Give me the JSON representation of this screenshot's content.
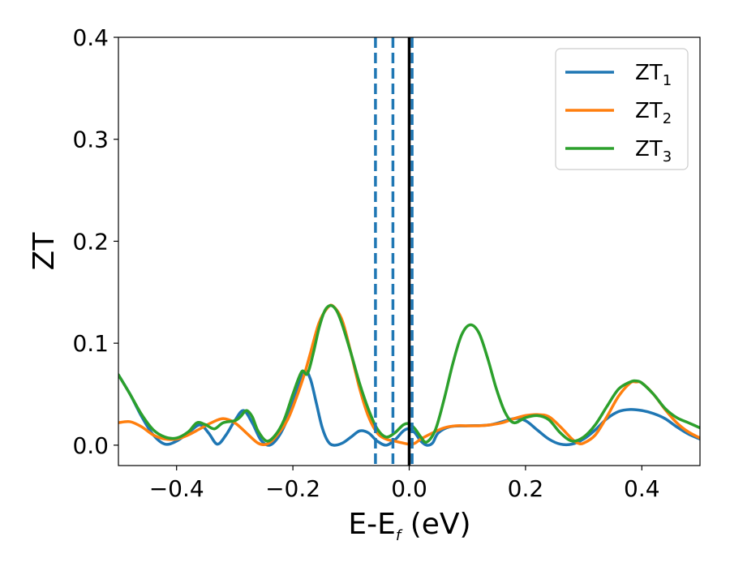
{
  "chart_data": {
    "type": "line",
    "title": "",
    "xlabel": "E-E",
    "xlabel_sub": "f",
    "xlabel_unit": " (eV)",
    "ylabel": "ZT",
    "xlim": [
      -0.5,
      0.5
    ],
    "ylim": [
      -0.02,
      0.4
    ],
    "grid": false,
    "legend_position": "top-right",
    "x_ticks": [
      -0.4,
      -0.2,
      0.0,
      0.2,
      0.4
    ],
    "x_tick_labels": [
      "−0.4",
      "−0.2",
      "0.0",
      "0.2",
      "0.4"
    ],
    "y_ticks": [
      0.0,
      0.1,
      0.2,
      0.3,
      0.4
    ],
    "y_tick_labels": [
      "0.0",
      "0.1",
      "0.2",
      "0.3",
      "0.4"
    ],
    "vertical_lines": [
      {
        "x": -0.058,
        "style": "dashed",
        "color": "#1f77b4"
      },
      {
        "x": -0.028,
        "style": "dashed",
        "color": "#1f77b4"
      },
      {
        "x": 0.005,
        "style": "dashed",
        "color": "#1f77b4"
      },
      {
        "x": 0.0,
        "style": "solid",
        "color": "#000000"
      }
    ],
    "series": [
      {
        "name": "ZT",
        "name_sub": "1",
        "color": "#1f77b4",
        "points": [
          [
            -0.5,
            0.069
          ],
          [
            -0.48,
            0.05
          ],
          [
            -0.46,
            0.028
          ],
          [
            -0.44,
            0.01
          ],
          [
            -0.42,
            0.001
          ],
          [
            -0.4,
            0.004
          ],
          [
            -0.38,
            0.012
          ],
          [
            -0.36,
            0.02
          ],
          [
            -0.345,
            0.012
          ],
          [
            -0.33,
            0.001
          ],
          [
            -0.315,
            0.01
          ],
          [
            -0.3,
            0.024
          ],
          [
            -0.285,
            0.034
          ],
          [
            -0.27,
            0.022
          ],
          [
            -0.255,
            0.005
          ],
          [
            -0.24,
            0.0
          ],
          [
            -0.225,
            0.008
          ],
          [
            -0.21,
            0.025
          ],
          [
            -0.195,
            0.05
          ],
          [
            -0.18,
            0.072
          ],
          [
            -0.17,
            0.065
          ],
          [
            -0.16,
            0.042
          ],
          [
            -0.15,
            0.018
          ],
          [
            -0.14,
            0.004
          ],
          [
            -0.13,
            0.0
          ],
          [
            -0.115,
            0.002
          ],
          [
            -0.1,
            0.008
          ],
          [
            -0.085,
            0.014
          ],
          [
            -0.07,
            0.012
          ],
          [
            -0.055,
            0.004
          ],
          [
            -0.04,
            0.0
          ],
          [
            -0.025,
            0.005
          ],
          [
            -0.01,
            0.014
          ],
          [
            0.0,
            0.016
          ],
          [
            0.01,
            0.012
          ],
          [
            0.02,
            0.004
          ],
          [
            0.03,
            0.0
          ],
          [
            0.04,
            0.002
          ],
          [
            0.05,
            0.012
          ],
          [
            0.07,
            0.018
          ],
          [
            0.1,
            0.019
          ],
          [
            0.14,
            0.02
          ],
          [
            0.18,
            0.026
          ],
          [
            0.2,
            0.024
          ],
          [
            0.22,
            0.015
          ],
          [
            0.24,
            0.006
          ],
          [
            0.26,
            0.001
          ],
          [
            0.28,
            0.001
          ],
          [
            0.3,
            0.006
          ],
          [
            0.32,
            0.015
          ],
          [
            0.34,
            0.026
          ],
          [
            0.36,
            0.033
          ],
          [
            0.38,
            0.035
          ],
          [
            0.4,
            0.034
          ],
          [
            0.42,
            0.031
          ],
          [
            0.44,
            0.026
          ],
          [
            0.46,
            0.018
          ],
          [
            0.48,
            0.011
          ],
          [
            0.5,
            0.006
          ]
        ]
      },
      {
        "name": "ZT",
        "name_sub": "2",
        "color": "#ff7f0e",
        "points": [
          [
            -0.5,
            0.022
          ],
          [
            -0.48,
            0.023
          ],
          [
            -0.46,
            0.018
          ],
          [
            -0.44,
            0.01
          ],
          [
            -0.42,
            0.006
          ],
          [
            -0.4,
            0.006
          ],
          [
            -0.38,
            0.01
          ],
          [
            -0.36,
            0.016
          ],
          [
            -0.34,
            0.022
          ],
          [
            -0.32,
            0.026
          ],
          [
            -0.3,
            0.022
          ],
          [
            -0.28,
            0.012
          ],
          [
            -0.26,
            0.002
          ],
          [
            -0.245,
            0.001
          ],
          [
            -0.23,
            0.008
          ],
          [
            -0.21,
            0.024
          ],
          [
            -0.195,
            0.045
          ],
          [
            -0.18,
            0.07
          ],
          [
            -0.17,
            0.09
          ],
          [
            -0.155,
            0.12
          ],
          [
            -0.14,
            0.135
          ],
          [
            -0.13,
            0.136
          ],
          [
            -0.115,
            0.122
          ],
          [
            -0.1,
            0.09
          ],
          [
            -0.085,
            0.055
          ],
          [
            -0.07,
            0.028
          ],
          [
            -0.055,
            0.012
          ],
          [
            -0.04,
            0.006
          ],
          [
            -0.025,
            0.004
          ],
          [
            -0.01,
            0.002
          ],
          [
            0.0,
            0.001
          ],
          [
            0.01,
            0.002
          ],
          [
            0.02,
            0.006
          ],
          [
            0.04,
            0.012
          ],
          [
            0.06,
            0.017
          ],
          [
            0.08,
            0.019
          ],
          [
            0.1,
            0.019
          ],
          [
            0.12,
            0.019
          ],
          [
            0.14,
            0.02
          ],
          [
            0.16,
            0.022
          ],
          [
            0.18,
            0.026
          ],
          [
            0.2,
            0.029
          ],
          [
            0.22,
            0.03
          ],
          [
            0.24,
            0.028
          ],
          [
            0.26,
            0.018
          ],
          [
            0.28,
            0.006
          ],
          [
            0.29,
            0.002
          ],
          [
            0.3,
            0.002
          ],
          [
            0.32,
            0.01
          ],
          [
            0.34,
            0.028
          ],
          [
            0.36,
            0.048
          ],
          [
            0.38,
            0.061
          ],
          [
            0.39,
            0.062
          ],
          [
            0.4,
            0.061
          ],
          [
            0.42,
            0.05
          ],
          [
            0.44,
            0.035
          ],
          [
            0.46,
            0.022
          ],
          [
            0.48,
            0.013
          ],
          [
            0.5,
            0.007
          ]
        ]
      },
      {
        "name": "ZT",
        "name_sub": "3",
        "color": "#2ca02c",
        "points": [
          [
            -0.5,
            0.069
          ],
          [
            -0.48,
            0.05
          ],
          [
            -0.46,
            0.03
          ],
          [
            -0.44,
            0.015
          ],
          [
            -0.42,
            0.008
          ],
          [
            -0.4,
            0.007
          ],
          [
            -0.38,
            0.013
          ],
          [
            -0.365,
            0.022
          ],
          [
            -0.35,
            0.02
          ],
          [
            -0.335,
            0.016
          ],
          [
            -0.32,
            0.022
          ],
          [
            -0.3,
            0.024
          ],
          [
            -0.29,
            0.028
          ],
          [
            -0.28,
            0.034
          ],
          [
            -0.27,
            0.028
          ],
          [
            -0.26,
            0.014
          ],
          [
            -0.245,
            0.004
          ],
          [
            -0.23,
            0.01
          ],
          [
            -0.215,
            0.025
          ],
          [
            -0.2,
            0.05
          ],
          [
            -0.185,
            0.072
          ],
          [
            -0.175,
            0.07
          ],
          [
            -0.165,
            0.09
          ],
          [
            -0.155,
            0.115
          ],
          [
            -0.145,
            0.132
          ],
          [
            -0.135,
            0.137
          ],
          [
            -0.125,
            0.132
          ],
          [
            -0.115,
            0.118
          ],
          [
            -0.1,
            0.09
          ],
          [
            -0.085,
            0.06
          ],
          [
            -0.07,
            0.035
          ],
          [
            -0.055,
            0.016
          ],
          [
            -0.04,
            0.008
          ],
          [
            -0.025,
            0.012
          ],
          [
            -0.01,
            0.02
          ],
          [
            0.0,
            0.021
          ],
          [
            0.01,
            0.016
          ],
          [
            0.02,
            0.008
          ],
          [
            0.03,
            0.003
          ],
          [
            0.045,
            0.015
          ],
          [
            0.06,
            0.045
          ],
          [
            0.075,
            0.08
          ],
          [
            0.09,
            0.108
          ],
          [
            0.105,
            0.118
          ],
          [
            0.12,
            0.11
          ],
          [
            0.135,
            0.085
          ],
          [
            0.15,
            0.055
          ],
          [
            0.165,
            0.032
          ],
          [
            0.18,
            0.022
          ],
          [
            0.2,
            0.027
          ],
          [
            0.22,
            0.029
          ],
          [
            0.24,
            0.025
          ],
          [
            0.26,
            0.012
          ],
          [
            0.28,
            0.004
          ],
          [
            0.3,
            0.008
          ],
          [
            0.32,
            0.02
          ],
          [
            0.34,
            0.038
          ],
          [
            0.36,
            0.055
          ],
          [
            0.38,
            0.062
          ],
          [
            0.39,
            0.063
          ],
          [
            0.4,
            0.061
          ],
          [
            0.42,
            0.05
          ],
          [
            0.44,
            0.036
          ],
          [
            0.46,
            0.027
          ],
          [
            0.48,
            0.022
          ],
          [
            0.5,
            0.017
          ]
        ]
      }
    ]
  }
}
